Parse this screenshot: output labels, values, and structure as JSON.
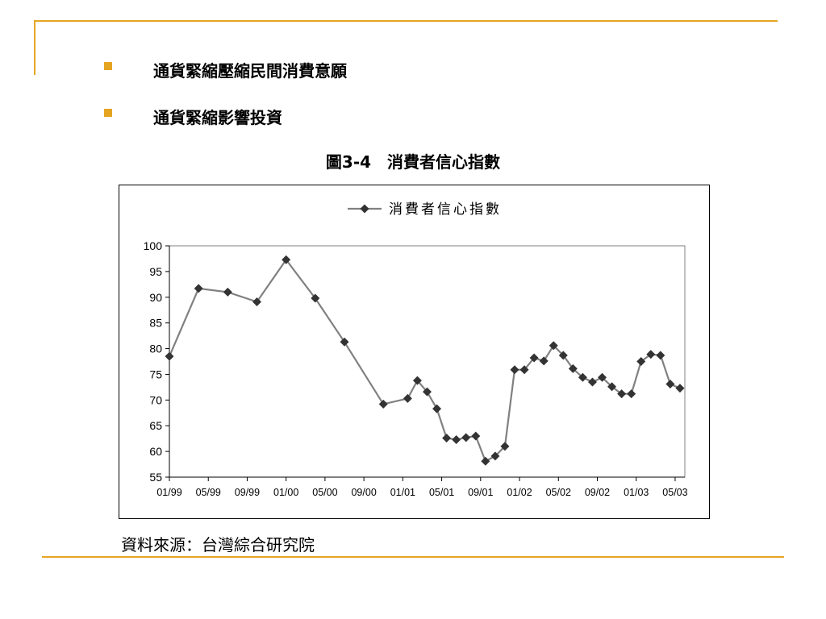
{
  "slide": {
    "bullets": [
      "通貨緊縮壓縮民間消費意願",
      "通貨緊縮影響投資"
    ],
    "figure_title": "圖3-4　消費者信心指數",
    "source": "資料來源：台灣綜合研究院",
    "accent_color": "#E6A423",
    "bullet_icon": "square-bullet-icon"
  },
  "chart_data": {
    "type": "line",
    "title": "",
    "xlabel": "",
    "ylabel": "",
    "ylim": [
      55,
      100
    ],
    "yticks": [
      55,
      60,
      65,
      70,
      75,
      80,
      85,
      90,
      95,
      100
    ],
    "xlim": [
      0,
      53
    ],
    "xticks": [
      {
        "label": "01/99",
        "x": 0
      },
      {
        "label": "05/99",
        "x": 4
      },
      {
        "label": "09/99",
        "x": 8
      },
      {
        "label": "01/00",
        "x": 12
      },
      {
        "label": "05/00",
        "x": 16
      },
      {
        "label": "09/00",
        "x": 20
      },
      {
        "label": "01/01",
        "x": 24
      },
      {
        "label": "05/01",
        "x": 28
      },
      {
        "label": "09/01",
        "x": 32
      },
      {
        "label": "01/02",
        "x": 36
      },
      {
        "label": "05/02",
        "x": 40
      },
      {
        "label": "09/02",
        "x": 44
      },
      {
        "label": "01/03",
        "x": 48
      },
      {
        "label": "05/03",
        "x": 52
      }
    ],
    "legend": "top-center",
    "grid": false,
    "series": [
      {
        "name": "消費者信心指數",
        "color": "#808080",
        "marker_color": "#333333",
        "points": [
          [
            0,
            78.5
          ],
          [
            3,
            91.7
          ],
          [
            6,
            91.0
          ],
          [
            9,
            89.1
          ],
          [
            12,
            97.3
          ],
          [
            15,
            89.8
          ],
          [
            18,
            81.3
          ],
          [
            22,
            69.2
          ],
          [
            24.5,
            70.3
          ],
          [
            25.5,
            73.8
          ],
          [
            26.5,
            71.6
          ],
          [
            27.5,
            68.3
          ],
          [
            28.5,
            62.6
          ],
          [
            29.5,
            62.3
          ],
          [
            30.5,
            62.7
          ],
          [
            31.5,
            63.0
          ],
          [
            32.5,
            58.1
          ],
          [
            33.5,
            59.1
          ],
          [
            34.5,
            61.0
          ],
          [
            35.5,
            75.9
          ],
          [
            36.5,
            75.9
          ],
          [
            37.5,
            78.2
          ],
          [
            38.5,
            77.6
          ],
          [
            39.5,
            80.6
          ],
          [
            40.5,
            78.7
          ],
          [
            41.5,
            76.1
          ],
          [
            42.5,
            74.4
          ],
          [
            43.5,
            73.5
          ],
          [
            44.5,
            74.4
          ],
          [
            45.5,
            72.6
          ],
          [
            46.5,
            71.2
          ],
          [
            47.5,
            71.2
          ],
          [
            48.5,
            77.5
          ],
          [
            49.5,
            78.9
          ],
          [
            50.5,
            78.7
          ],
          [
            51.5,
            73.1
          ],
          [
            52.5,
            72.3
          ]
        ]
      }
    ]
  }
}
